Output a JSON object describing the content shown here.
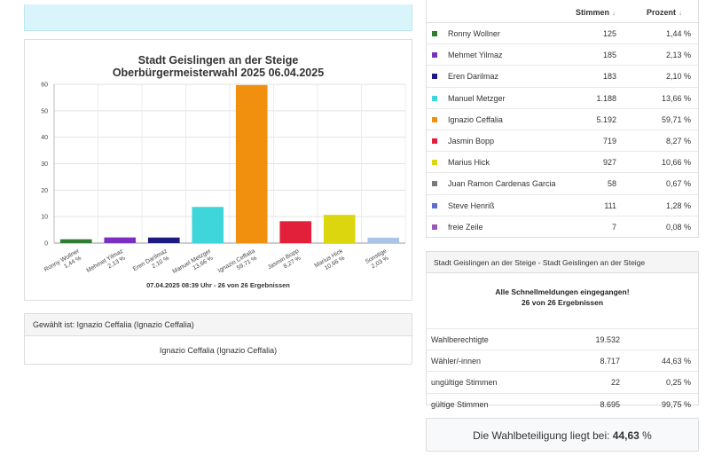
{
  "chart_data": {
    "type": "bar",
    "title": "Stadt Geislingen an der Steige",
    "subtitle": "Oberbürgermeisterwahl 2025 06.04.2025",
    "footer": "07.04.2025 08:39 Uhr - 26 von 26 Ergebnissen",
    "ylim": [
      0,
      60
    ],
    "yticks": [
      0,
      10,
      20,
      30,
      40,
      50,
      60
    ],
    "grid": true,
    "categories": [
      {
        "name": "Ronny Wollner",
        "pct_label": "1,44 %"
      },
      {
        "name": "Mehmet Yilmaz",
        "pct_label": "2,13 %"
      },
      {
        "name": "Eren Darilmaz",
        "pct_label": "2,10 %"
      },
      {
        "name": "Manuel Metzger",
        "pct_label": "13,66 %"
      },
      {
        "name": "Ignazio Ceffalia",
        "pct_label": "59,71 %"
      },
      {
        "name": "Jasmin Bopp",
        "pct_label": "8,27 %"
      },
      {
        "name": "Marius Hick",
        "pct_label": "10,66 %"
      },
      {
        "name": "Sonstige",
        "pct_label": "2,03 %"
      }
    ],
    "values": [
      1.44,
      2.13,
      2.1,
      13.66,
      59.71,
      8.27,
      10.66,
      2.03
    ],
    "colors": [
      "#2e7d32",
      "#7b2fbe",
      "#1a1a80",
      "#3fd6db",
      "#f0900e",
      "#e3203a",
      "#dcd60f",
      "#a8c4e6"
    ]
  },
  "elected": {
    "header": "Gewählt ist: Ignazio Ceffalia (Ignazio Ceffalia)",
    "body": "Ignazio Ceffalia (Ignazio Ceffalia)"
  },
  "results": {
    "col_votes": "Stimmen",
    "col_pct": "Prozent",
    "sort_icon": "↓",
    "rows": [
      {
        "name": "Ronny Wollner",
        "votes": "125",
        "pct": "1,44 %",
        "color": "#2e7d32"
      },
      {
        "name": "Mehmet Yilmaz",
        "votes": "185",
        "pct": "2,13 %",
        "color": "#7b2fbe"
      },
      {
        "name": "Eren Darilmaz",
        "votes": "183",
        "pct": "2,10 %",
        "color": "#1a1a80"
      },
      {
        "name": "Manuel Metzger",
        "votes": "1.188",
        "pct": "13,66 %",
        "color": "#3fd6db"
      },
      {
        "name": "Ignazio Ceffalia",
        "votes": "5.192",
        "pct": "59,71 %",
        "color": "#f0900e"
      },
      {
        "name": "Jasmin Bopp",
        "votes": "719",
        "pct": "8,27 %",
        "color": "#e3203a"
      },
      {
        "name": "Marius Hick",
        "votes": "927",
        "pct": "10,66 %",
        "color": "#dcd60f"
      },
      {
        "name": "Juan Ramon Cardenas Garcia",
        "votes": "58",
        "pct": "0,67 %",
        "color": "#7a7a7a"
      },
      {
        "name": "Steve Henriß",
        "votes": "111",
        "pct": "1,28 %",
        "color": "#5a6fd1"
      },
      {
        "name": "freie Zeile",
        "votes": "7",
        "pct": "0,08 %",
        "color": "#9b59b6"
      }
    ]
  },
  "summary": {
    "header": "Stadt Geislingen an der Steige - Stadt Geislingen an der Steige",
    "message_line1": "Alle Schnellmeldungen eingegangen!",
    "message_line2": "26 von 26 Ergebnissen",
    "rows": [
      {
        "label": "Wahlberechtigte",
        "value": "19.532",
        "pct": ""
      },
      {
        "label": "Wähler/-innen",
        "value": "8.717",
        "pct": "44,63 %"
      },
      {
        "label": "ungültige Stimmen",
        "value": "22",
        "pct": "0,25 %"
      },
      {
        "label": "gültige Stimmen",
        "value": "8.695",
        "pct": "99,75 %"
      }
    ]
  },
  "turnout": {
    "text": "Die Wahlbeteiligung liegt bei:",
    "value": "44,63",
    "unit": "%"
  }
}
